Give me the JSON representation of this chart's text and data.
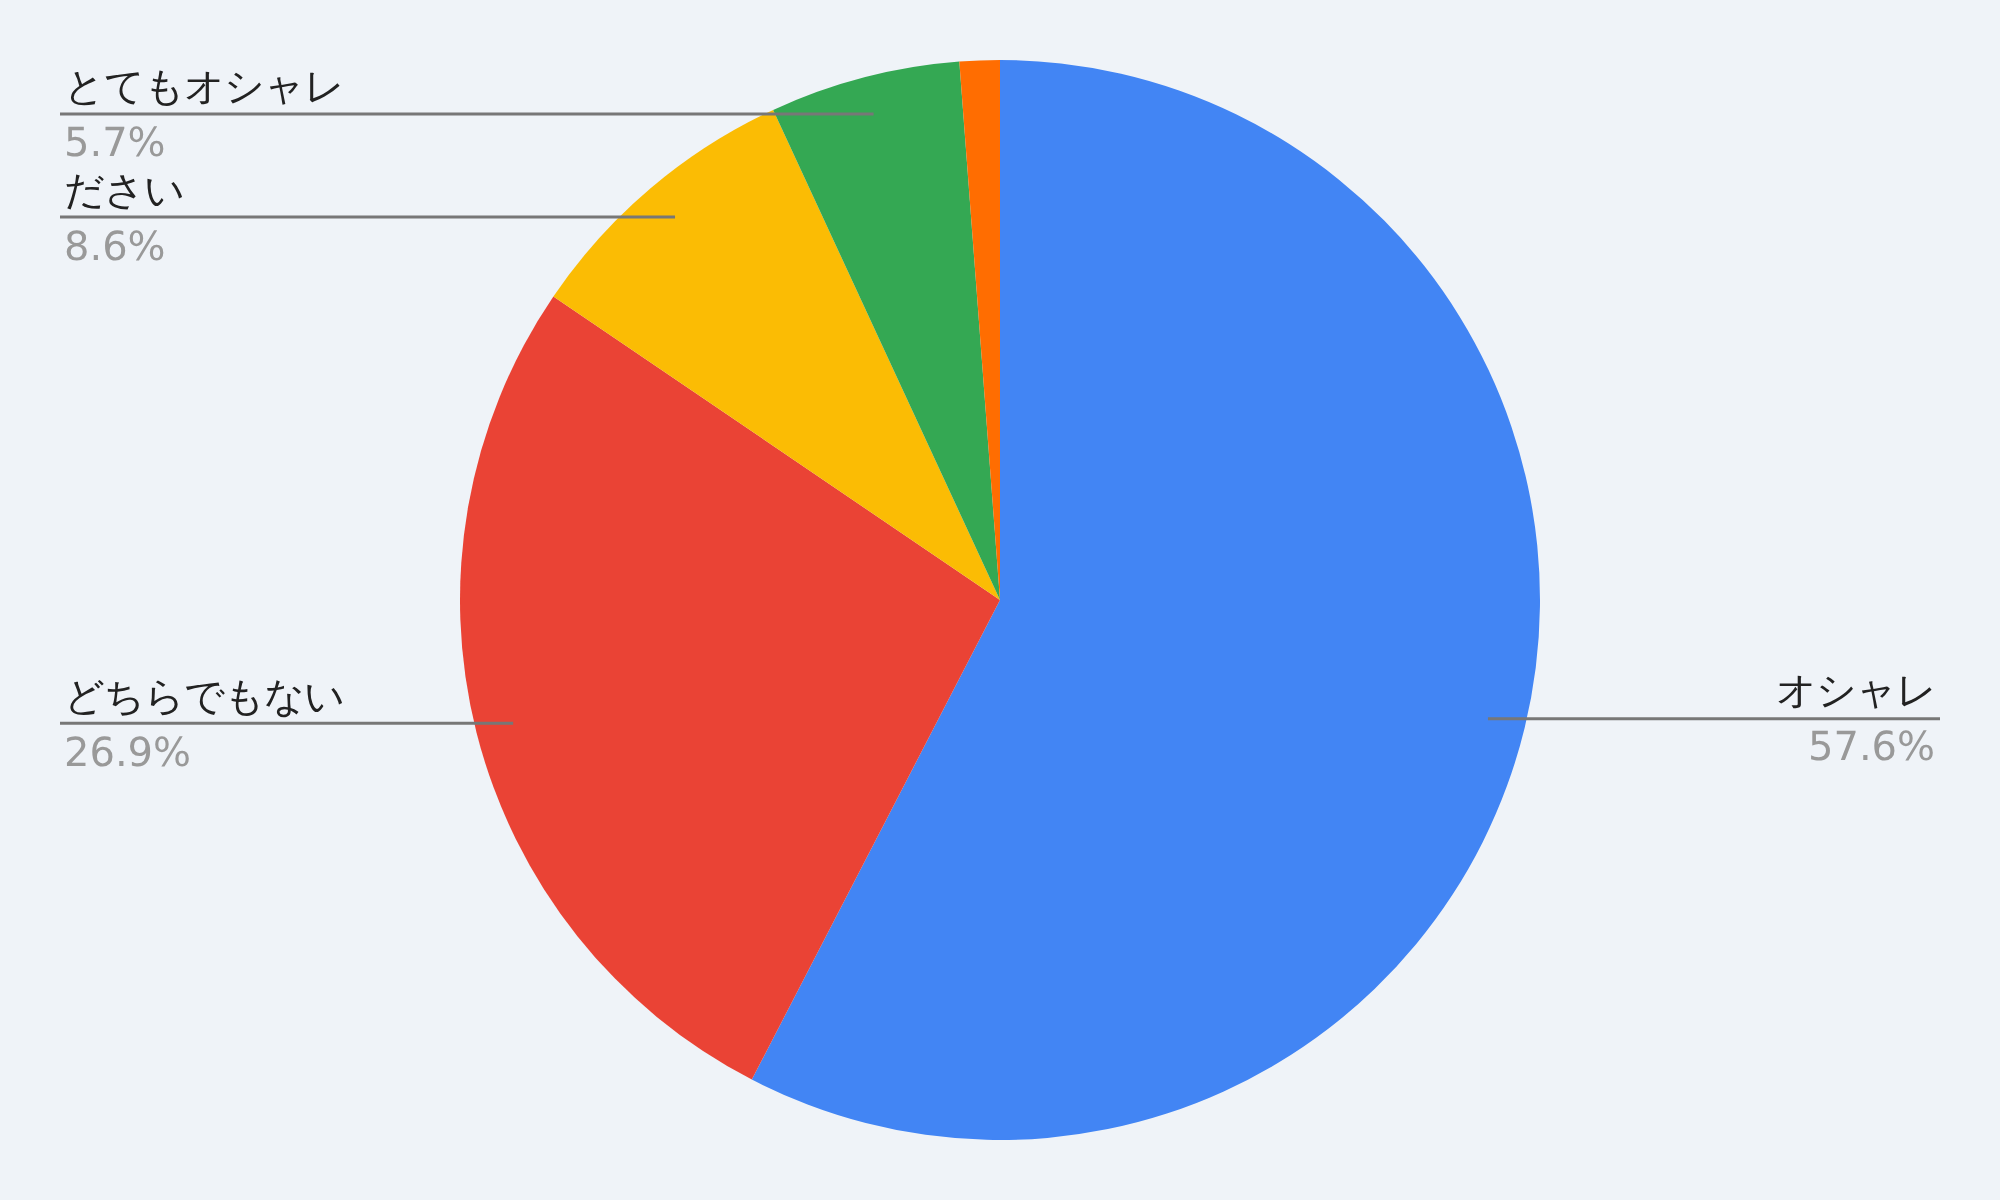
{
  "chart_data": {
    "type": "pie",
    "categories": [
      "オシャレ",
      "どちらでもない",
      "ださい",
      "とてもオシャレ",
      null
    ],
    "values": [
      57.6,
      26.9,
      8.6,
      5.7,
      1.2
    ],
    "value_labels": [
      "57.6%",
      "26.9%",
      "8.6%",
      "5.7%",
      null
    ],
    "colors": [
      "#4285f4",
      "#ea4335",
      "#fbbc04",
      "#34a853",
      "#ff6d01"
    ],
    "legend": false
  }
}
